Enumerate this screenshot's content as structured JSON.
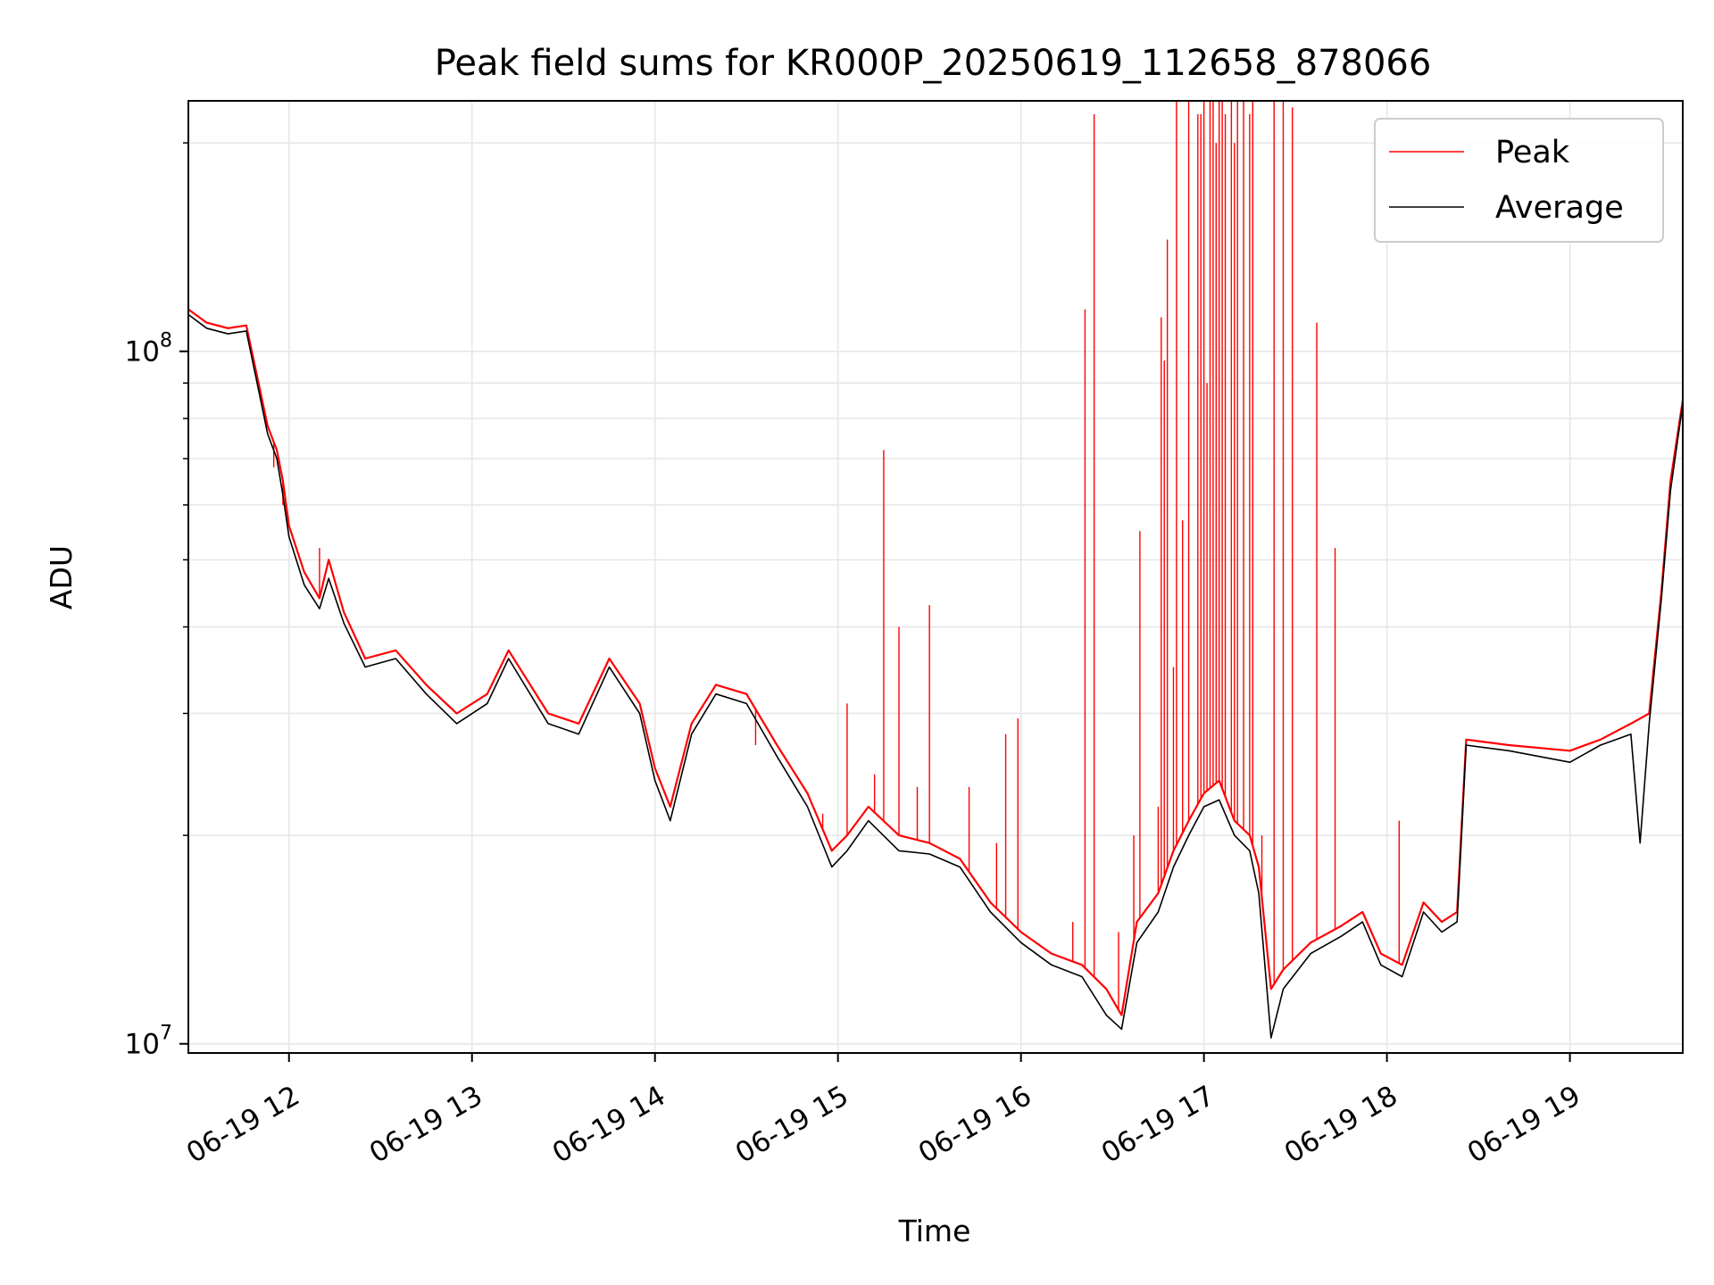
{
  "chart_data": {
    "type": "line",
    "title": "Peak field sums for KR000P_20250619_112658_878066",
    "xlabel": "Time",
    "ylabel": "ADU",
    "y_scale": "log",
    "ylim": [
      9700000,
      230000000
    ],
    "xlim": [
      "06-19 11:27",
      "06-19 19:37"
    ],
    "grid": true,
    "legend_position": "top-right",
    "x_ticks": [
      "06-19 12",
      "06-19 13",
      "06-19 14",
      "06-19 15",
      "06-19 16",
      "06-19 17",
      "06-19 18",
      "06-19 19"
    ],
    "y_ticks": [
      {
        "base": "10",
        "exp": "7"
      },
      {
        "base": "10",
        "exp": "8"
      }
    ],
    "series": [
      {
        "name": "Peak",
        "color": "#ff0000",
        "points": [
          [
            "06-19 11:27",
            115000000
          ],
          [
            "06-19 11:33",
            110000000
          ],
          [
            "06-19 11:40",
            108000000
          ],
          [
            "06-19 11:46",
            109000000
          ],
          [
            "06-19 11:50",
            90000000
          ],
          [
            "06-19 11:53",
            78000000
          ],
          [
            "06-19 11:56",
            72000000
          ],
          [
            "06-19 11:58",
            65000000
          ],
          [
            "06-19 12:00",
            56000000
          ],
          [
            "06-19 12:05",
            48000000
          ],
          [
            "06-19 12:10",
            44000000
          ],
          [
            "06-19 12:13",
            50000000
          ],
          [
            "06-19 12:18",
            42000000
          ],
          [
            "06-19 12:25",
            36000000
          ],
          [
            "06-19 12:35",
            37000000
          ],
          [
            "06-19 12:45",
            33000000
          ],
          [
            "06-19 12:55",
            30000000
          ],
          [
            "06-19 13:05",
            32000000
          ],
          [
            "06-19 13:12",
            37000000
          ],
          [
            "06-19 13:25",
            30000000
          ],
          [
            "06-19 13:35",
            29000000
          ],
          [
            "06-19 13:45",
            36000000
          ],
          [
            "06-19 13:55",
            31000000
          ],
          [
            "06-19 14:00",
            25000000
          ],
          [
            "06-19 14:05",
            22000000
          ],
          [
            "06-19 14:12",
            29000000
          ],
          [
            "06-19 14:20",
            33000000
          ],
          [
            "06-19 14:30",
            32000000
          ],
          [
            "06-19 14:40",
            27000000
          ],
          [
            "06-19 14:50",
            23000000
          ],
          [
            "06-19 14:58",
            19000000
          ],
          [
            "06-19 15:03",
            20000000
          ],
          [
            "06-19 15:10",
            22000000
          ],
          [
            "06-19 15:20",
            20000000
          ],
          [
            "06-19 15:30",
            19500000
          ],
          [
            "06-19 15:40",
            18500000
          ],
          [
            "06-19 15:50",
            16000000
          ],
          [
            "06-19 16:00",
            14500000
          ],
          [
            "06-19 16:10",
            13500000
          ],
          [
            "06-19 16:20",
            13000000
          ],
          [
            "06-19 16:28",
            12000000
          ],
          [
            "06-19 16:33",
            11000000
          ],
          [
            "06-19 16:38",
            15000000
          ],
          [
            "06-19 16:45",
            16500000
          ],
          [
            "06-19 16:50",
            19000000
          ],
          [
            "06-19 16:55",
            21000000
          ],
          [
            "06-19 17:00",
            23000000
          ],
          [
            "06-19 17:05",
            24000000
          ],
          [
            "06-19 17:10",
            21000000
          ],
          [
            "06-19 17:15",
            20000000
          ],
          [
            "06-19 17:18",
            18000000
          ],
          [
            "06-19 17:22",
            12000000
          ],
          [
            "06-19 17:26",
            12800000
          ],
          [
            "06-19 17:35",
            14000000
          ],
          [
            "06-19 17:45",
            14800000
          ],
          [
            "06-19 17:52",
            15500000
          ],
          [
            "06-19 17:58",
            13500000
          ],
          [
            "06-19 18:05",
            13000000
          ],
          [
            "06-19 18:12",
            16000000
          ],
          [
            "06-19 18:18",
            15000000
          ],
          [
            "06-19 18:23",
            15500000
          ],
          [
            "06-19 18:26",
            27500000
          ],
          [
            "06-19 18:40",
            27000000
          ],
          [
            "06-19 19:00",
            26500000
          ],
          [
            "06-19 19:10",
            27500000
          ],
          [
            "06-19 19:20",
            29000000
          ],
          [
            "06-19 19:26",
            30000000
          ],
          [
            "06-19 19:30",
            45000000
          ],
          [
            "06-19 19:33",
            65000000
          ],
          [
            "06-19 19:37",
            85000000
          ]
        ],
        "spikes": [
          [
            "06-19 11:55",
            68000000
          ],
          [
            "06-19 11:58",
            60000000
          ],
          [
            "06-19 12:10",
            52000000
          ],
          [
            "06-19 14:33",
            27000000
          ],
          [
            "06-19 14:55",
            21500000
          ],
          [
            "06-19 15:03",
            31000000
          ],
          [
            "06-19 15:12",
            24500000
          ],
          [
            "06-19 15:15",
            72000000
          ],
          [
            "06-19 15:20",
            40000000
          ],
          [
            "06-19 15:26",
            23500000
          ],
          [
            "06-19 15:30",
            43000000
          ],
          [
            "06-19 15:43",
            23500000
          ],
          [
            "06-19 15:52",
            19500000
          ],
          [
            "06-19 15:55",
            28000000
          ],
          [
            "06-19 15:59",
            29500000
          ],
          [
            "06-19 16:17",
            15000000
          ],
          [
            "06-19 16:21",
            115000000
          ],
          [
            "06-19 16:24",
            220000000
          ],
          [
            "06-19 16:32",
            14500000
          ],
          [
            "06-19 16:37",
            20000000
          ],
          [
            "06-19 16:39",
            55000000
          ],
          [
            "06-19 16:45",
            22000000
          ],
          [
            "06-19 16:46",
            112000000
          ],
          [
            "06-19 16:47",
            97000000
          ],
          [
            "06-19 16:48",
            145000000
          ],
          [
            "06-19 16:50",
            35000000
          ],
          [
            "06-19 16:51",
            230000000
          ],
          [
            "06-19 16:53",
            57000000
          ],
          [
            "06-19 16:55",
            230000000
          ],
          [
            "06-19 16:58",
            220000000
          ],
          [
            "06-19 16:59",
            220000000
          ],
          [
            "06-19 17:00",
            230000000
          ],
          [
            "06-19 17:01",
            90000000
          ],
          [
            "06-19 17:02",
            230000000
          ],
          [
            "06-19 17:03",
            230000000
          ],
          [
            "06-19 17:04",
            200000000
          ],
          [
            "06-19 17:05",
            230000000
          ],
          [
            "06-19 17:06",
            230000000
          ],
          [
            "06-19 17:07",
            220000000
          ],
          [
            "06-19 17:09",
            230000000
          ],
          [
            "06-19 17:10",
            200000000
          ],
          [
            "06-19 17:11",
            230000000
          ],
          [
            "06-19 17:13",
            230000000
          ],
          [
            "06-19 17:15",
            220000000
          ],
          [
            "06-19 17:16",
            230000000
          ],
          [
            "06-19 17:19",
            20000000
          ],
          [
            "06-19 17:23",
            230000000
          ],
          [
            "06-19 17:26",
            230000000
          ],
          [
            "06-19 17:29",
            225000000
          ],
          [
            "06-19 17:37",
            110000000
          ],
          [
            "06-19 17:43",
            52000000
          ],
          [
            "06-19 18:04",
            21000000
          ]
        ]
      },
      {
        "name": "Average",
        "color": "#000000",
        "points": [
          [
            "06-19 11:27",
            113000000
          ],
          [
            "06-19 11:33",
            108000000
          ],
          [
            "06-19 11:40",
            106000000
          ],
          [
            "06-19 11:46",
            107000000
          ],
          [
            "06-19 11:50",
            88000000
          ],
          [
            "06-19 11:53",
            76000000
          ],
          [
            "06-19 11:56",
            70000000
          ],
          [
            "06-19 11:58",
            62000000
          ],
          [
            "06-19 12:00",
            54000000
          ],
          [
            "06-19 12:05",
            46000000
          ],
          [
            "06-19 12:10",
            42500000
          ],
          [
            "06-19 12:13",
            47000000
          ],
          [
            "06-19 12:18",
            40500000
          ],
          [
            "06-19 12:25",
            35000000
          ],
          [
            "06-19 12:35",
            36000000
          ],
          [
            "06-19 12:45",
            32000000
          ],
          [
            "06-19 12:55",
            29000000
          ],
          [
            "06-19 13:05",
            31000000
          ],
          [
            "06-19 13:12",
            36000000
          ],
          [
            "06-19 13:25",
            29000000
          ],
          [
            "06-19 13:35",
            28000000
          ],
          [
            "06-19 13:45",
            35000000
          ],
          [
            "06-19 13:55",
            30000000
          ],
          [
            "06-19 14:00",
            24000000
          ],
          [
            "06-19 14:05",
            21000000
          ],
          [
            "06-19 14:12",
            28000000
          ],
          [
            "06-19 14:20",
            32000000
          ],
          [
            "06-19 14:30",
            31000000
          ],
          [
            "06-19 14:40",
            26000000
          ],
          [
            "06-19 14:50",
            22000000
          ],
          [
            "06-19 14:58",
            18000000
          ],
          [
            "06-19 15:03",
            19000000
          ],
          [
            "06-19 15:10",
            21000000
          ],
          [
            "06-19 15:20",
            19000000
          ],
          [
            "06-19 15:30",
            18800000
          ],
          [
            "06-19 15:40",
            18000000
          ],
          [
            "06-19 15:50",
            15500000
          ],
          [
            "06-19 16:00",
            14000000
          ],
          [
            "06-19 16:10",
            13000000
          ],
          [
            "06-19 16:20",
            12500000
          ],
          [
            "06-19 16:28",
            11000000
          ],
          [
            "06-19 16:33",
            10500000
          ],
          [
            "06-19 16:38",
            14000000
          ],
          [
            "06-19 16:45",
            15500000
          ],
          [
            "06-19 16:50",
            18000000
          ],
          [
            "06-19 16:55",
            20000000
          ],
          [
            "06-19 17:00",
            22000000
          ],
          [
            "06-19 17:05",
            22500000
          ],
          [
            "06-19 17:10",
            20000000
          ],
          [
            "06-19 17:15",
            19000000
          ],
          [
            "06-19 17:18",
            16500000
          ],
          [
            "06-19 17:22",
            10200000
          ],
          [
            "06-19 17:26",
            12000000
          ],
          [
            "06-19 17:35",
            13500000
          ],
          [
            "06-19 17:45",
            14300000
          ],
          [
            "06-19 17:52",
            15000000
          ],
          [
            "06-19 17:58",
            13000000
          ],
          [
            "06-19 18:05",
            12500000
          ],
          [
            "06-19 18:12",
            15500000
          ],
          [
            "06-19 18:18",
            14500000
          ],
          [
            "06-19 18:23",
            15000000
          ],
          [
            "06-19 18:26",
            27000000
          ],
          [
            "06-19 18:40",
            26500000
          ],
          [
            "06-19 19:00",
            25500000
          ],
          [
            "06-19 19:10",
            27000000
          ],
          [
            "06-19 19:20",
            28000000
          ],
          [
            "06-19 19:23",
            19500000
          ],
          [
            "06-19 19:26",
            29000000
          ],
          [
            "06-19 19:30",
            44000000
          ],
          [
            "06-19 19:33",
            63000000
          ],
          [
            "06-19 19:37",
            84000000
          ]
        ]
      }
    ]
  }
}
